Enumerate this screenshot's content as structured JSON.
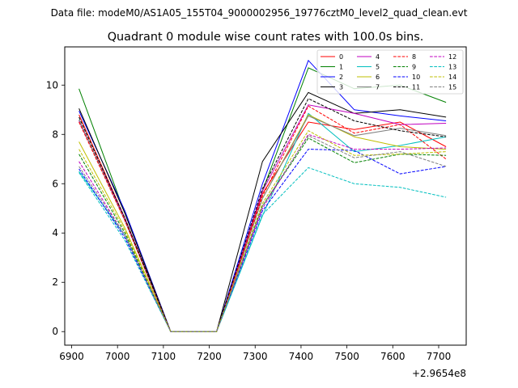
{
  "chart_data": {
    "type": "line",
    "suptitle": "Data file: modeM0/AS1A05_155T04_9000002956_19776cztM0_level2_quad_clean.evt",
    "title": "Quadrant 0 module wise count rates with 100.0s bins.",
    "xlabel": "",
    "ylabel": "",
    "x_offset_label": "+2.9654e8",
    "x_offset": 296540000,
    "x": [
      296546916,
      296547016,
      296547116,
      296547216,
      296547316,
      296547416,
      296547516,
      296547616,
      296547716
    ],
    "xlim": [
      296546885,
      296547760
    ],
    "ylim": [
      -0.55,
      11.55
    ],
    "x_ticks": [
      296546900,
      296547000,
      296547100,
      296547200,
      296547300,
      296547400,
      296547500,
      296547600,
      296547700
    ],
    "x_tick_labels": [
      "6900",
      "7000",
      "7100",
      "7200",
      "7300",
      "7400",
      "7500",
      "7600",
      "7700"
    ],
    "y_ticks": [
      0,
      2,
      4,
      6,
      8,
      10
    ],
    "y_tick_labels": [
      "0",
      "2",
      "4",
      "6",
      "8",
      "10"
    ],
    "grid": false,
    "legend": {
      "placement": "top-right",
      "columns": 4
    },
    "series": [
      {
        "name": "0",
        "color": "#ff0000",
        "dash": "solid",
        "values": [
          8.8,
          4.6,
          0,
          0,
          5.6,
          8.5,
          8.2,
          8.5,
          7.5
        ]
      },
      {
        "name": "1",
        "color": "#008000",
        "dash": "solid",
        "values": [
          9.85,
          4.8,
          0,
          0,
          5.7,
          10.7,
          9.85,
          10.0,
          9.3
        ]
      },
      {
        "name": "2",
        "color": "#0000ff",
        "dash": "solid",
        "values": [
          8.95,
          4.9,
          0,
          0,
          6.0,
          11.0,
          9.0,
          8.75,
          8.55
        ]
      },
      {
        "name": "3",
        "color": "#000000",
        "dash": "solid",
        "values": [
          9.05,
          4.8,
          0,
          0,
          6.9,
          9.7,
          8.85,
          9.0,
          8.7
        ]
      },
      {
        "name": "4",
        "color": "#c000c0",
        "dash": "solid",
        "values": [
          8.55,
          4.6,
          0,
          0,
          5.7,
          9.2,
          8.85,
          8.4,
          8.45
        ]
      },
      {
        "name": "5",
        "color": "#00bfbf",
        "dash": "solid",
        "values": [
          6.5,
          3.9,
          0,
          0,
          4.7,
          8.85,
          7.3,
          7.55,
          7.9
        ]
      },
      {
        "name": "6",
        "color": "#bfbf00",
        "dash": "solid",
        "values": [
          7.7,
          4.2,
          0,
          0,
          5.4,
          8.8,
          7.9,
          7.5,
          7.4
        ]
      },
      {
        "name": "7",
        "color": "#808080",
        "dash": "solid",
        "values": [
          8.6,
          4.5,
          0,
          0,
          5.4,
          8.75,
          7.95,
          8.25,
          7.95
        ]
      },
      {
        "name": "8",
        "color": "#ff0000",
        "dash": "dashed",
        "values": [
          8.5,
          4.5,
          0,
          0,
          5.5,
          9.15,
          8.05,
          8.4,
          7.0
        ]
      },
      {
        "name": "9",
        "color": "#008000",
        "dash": "dashed",
        "values": [
          7.2,
          4.0,
          0,
          0,
          5.1,
          7.85,
          6.85,
          7.2,
          7.15
        ]
      },
      {
        "name": "10",
        "color": "#0000ff",
        "dash": "dashed",
        "values": [
          6.6,
          3.8,
          0,
          0,
          4.9,
          7.4,
          7.35,
          6.4,
          6.7
        ]
      },
      {
        "name": "11",
        "color": "#000000",
        "dash": "dashed",
        "values": [
          8.7,
          4.6,
          0,
          0,
          5.8,
          9.45,
          8.55,
          8.15,
          7.9
        ]
      },
      {
        "name": "12",
        "color": "#c000c0",
        "dash": "dashed",
        "values": [
          6.9,
          3.9,
          0,
          0,
          5.0,
          8.0,
          7.4,
          7.4,
          7.45
        ]
      },
      {
        "name": "13",
        "color": "#00bfbf",
        "dash": "dashed",
        "values": [
          6.45,
          3.7,
          0,
          0,
          4.75,
          6.65,
          6.0,
          5.85,
          5.45
        ]
      },
      {
        "name": "14",
        "color": "#bfbf00",
        "dash": "dashed",
        "values": [
          7.4,
          4.1,
          0,
          0,
          5.2,
          8.15,
          7.15,
          7.2,
          7.3
        ]
      },
      {
        "name": "15",
        "color": "#808080",
        "dash": "dashed",
        "values": [
          6.7,
          3.9,
          0,
          0,
          5.1,
          7.95,
          7.05,
          7.3,
          6.7
        ]
      }
    ]
  }
}
